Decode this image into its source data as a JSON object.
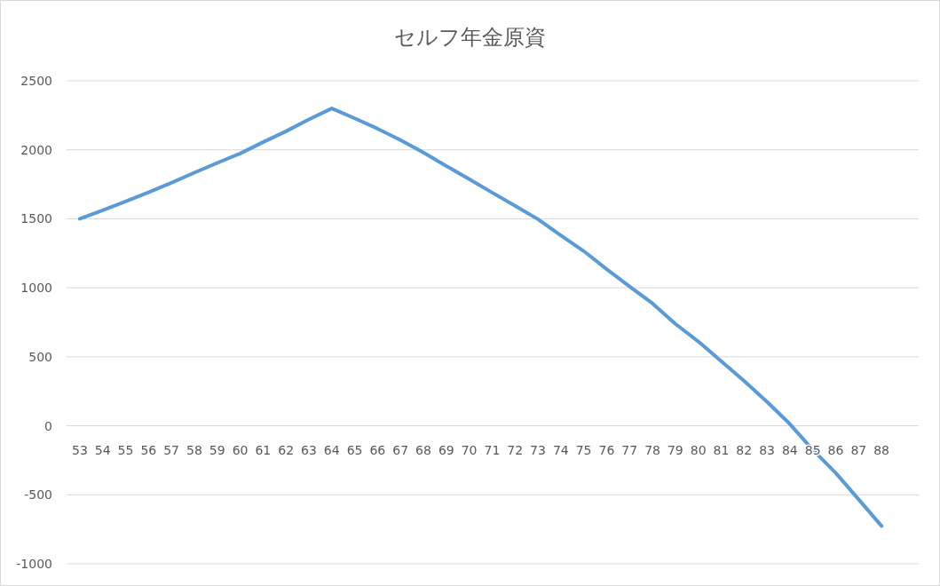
{
  "chart_data": {
    "type": "line",
    "title": "セルフ年金原資",
    "categories": [
      "53",
      "54",
      "55",
      "56",
      "57",
      "58",
      "59",
      "60",
      "61",
      "62",
      "63",
      "64",
      "65",
      "66",
      "67",
      "68",
      "69",
      "70",
      "71",
      "72",
      "73",
      "74",
      "75",
      "76",
      "77",
      "78",
      "79",
      "80",
      "81",
      "82",
      "83",
      "84",
      "85",
      "86",
      "87",
      "88"
    ],
    "series": [
      {
        "color": "#5b9bd5",
        "values": [
          1500,
          1562,
          1626,
          1692,
          1761,
          1834,
          1905,
          1973,
          2055,
          2134,
          2220,
          2300,
          2228,
          2153,
          2070,
          1980,
          1883,
          1788,
          1690,
          1595,
          1497,
          1380,
          1266,
          1135,
          1010,
          887,
          739,
          611,
          469,
          325,
          174,
          13,
          -174,
          -341,
          -533,
          -726
        ]
      }
    ],
    "ylim": [
      -1000,
      2500
    ],
    "yticks": [
      -1000,
      -500,
      0,
      500,
      1000,
      1500,
      2000,
      2500
    ],
    "grid": "y"
  }
}
